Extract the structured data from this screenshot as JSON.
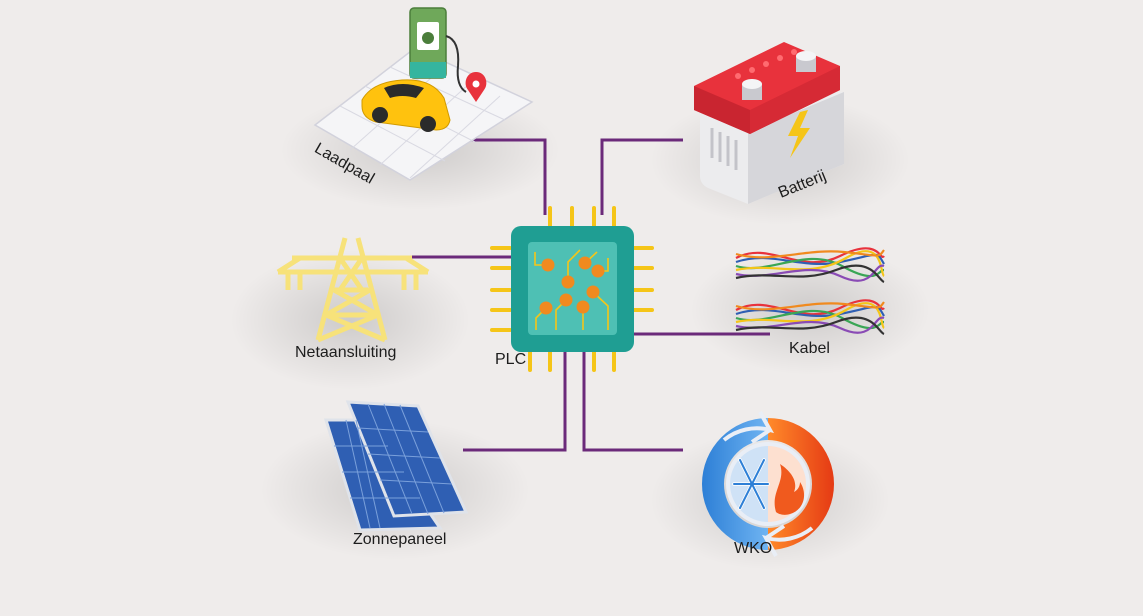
{
  "diagram": {
    "center": {
      "label": "PLC"
    },
    "nodes": [
      {
        "id": "laadpaal",
        "label": "Laadpaal",
        "icon": "ev-charging-station-icon"
      },
      {
        "id": "batterij",
        "label": "Batterij",
        "icon": "car-battery-icon"
      },
      {
        "id": "netaansluiting",
        "label": "Netaansluiting",
        "icon": "power-pylon-icon"
      },
      {
        "id": "kabel",
        "label": "Kabel",
        "icon": "colored-cables-icon"
      },
      {
        "id": "zonnepaneel",
        "label": "Zonnepaneel",
        "icon": "solar-panel-icon"
      },
      {
        "id": "wko",
        "label": "WKO",
        "icon": "heat-cold-storage-icon"
      }
    ],
    "edges": [
      {
        "from": "laadpaal",
        "to": "plc"
      },
      {
        "from": "batterij",
        "to": "plc"
      },
      {
        "from": "netaansluiting",
        "to": "plc"
      },
      {
        "from": "kabel",
        "to": "plc"
      },
      {
        "from": "zonnepaneel",
        "to": "plc"
      },
      {
        "from": "wko",
        "to": "plc"
      }
    ]
  },
  "colors": {
    "background": "#efeceb",
    "connector": "#6b2a7a",
    "chip": "#1f9e93",
    "chip_pins": "#f5c518",
    "chip_nodes": "#f08a1f",
    "battery_top": "#e8323c",
    "pylon": "#f7e27a",
    "solar": "#2f5fb3",
    "wko_cold": "#3b8fe0",
    "wko_hot": "#f05a1e"
  }
}
